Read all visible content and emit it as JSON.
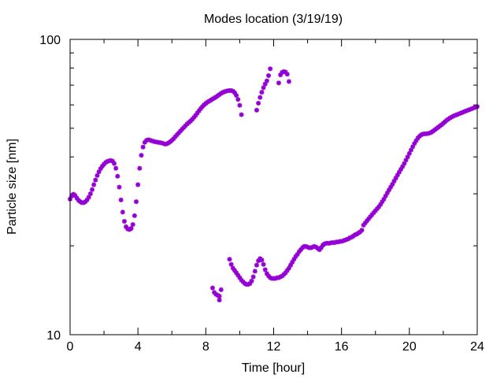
{
  "chart_data": {
    "type": "scatter",
    "title": "Modes location (3/19/19)",
    "xlabel": "Time [hour]",
    "ylabel": "Particle size [nm]",
    "xlim": [
      0,
      24
    ],
    "ylim": [
      10,
      100
    ],
    "yscale": "log",
    "grid": false,
    "legend": "none",
    "marker": "asterisk",
    "marker_color": "#9400d3",
    "x_ticks": [
      0,
      4,
      8,
      12,
      16,
      20,
      24
    ],
    "x_tick_labels": [
      "0",
      "4",
      "8",
      "12",
      "16",
      "20",
      "24"
    ],
    "y_major_ticks": [
      10,
      100
    ],
    "y_tick_labels": [
      "10",
      "100"
    ],
    "series": [
      {
        "points": [
          [
            0.0,
            28.8
          ],
          [
            0.1,
            29.5
          ],
          [
            0.2,
            29.9
          ],
          [
            0.3,
            29.6
          ],
          [
            0.4,
            29.0
          ],
          [
            0.5,
            28.5
          ],
          [
            0.6,
            28.2
          ],
          [
            0.7,
            28.0
          ],
          [
            0.8,
            28.0
          ],
          [
            0.9,
            28.2
          ],
          [
            1.0,
            28.6
          ],
          [
            1.1,
            29.2
          ],
          [
            1.2,
            30.0
          ],
          [
            1.3,
            31.0
          ],
          [
            1.4,
            32.2
          ],
          [
            1.5,
            33.4
          ],
          [
            1.6,
            34.6
          ],
          [
            1.7,
            35.6
          ],
          [
            1.8,
            36.5
          ],
          [
            1.9,
            37.2
          ],
          [
            2.0,
            37.8
          ],
          [
            2.1,
            38.3
          ],
          [
            2.2,
            38.6
          ],
          [
            2.3,
            38.8
          ],
          [
            2.4,
            38.9
          ],
          [
            2.5,
            38.7
          ],
          [
            2.6,
            38.0
          ],
          [
            2.7,
            36.6
          ],
          [
            2.8,
            34.4
          ],
          [
            2.9,
            31.6
          ],
          [
            3.0,
            28.6
          ],
          [
            3.1,
            26.0
          ],
          [
            3.2,
            24.2
          ],
          [
            3.3,
            23.2
          ],
          [
            3.4,
            22.8
          ],
          [
            3.5,
            22.7
          ],
          [
            3.6,
            22.9
          ],
          [
            3.7,
            23.6
          ],
          [
            3.8,
            25.3
          ],
          [
            3.9,
            28.2
          ],
          [
            4.0,
            32.2
          ],
          [
            4.1,
            36.6
          ],
          [
            4.2,
            40.5
          ],
          [
            4.3,
            43.2
          ],
          [
            4.4,
            44.8
          ],
          [
            4.5,
            45.5
          ],
          [
            4.6,
            45.7
          ],
          [
            4.7,
            45.6
          ],
          [
            4.8,
            45.4
          ],
          [
            4.9,
            45.2
          ],
          [
            5.0,
            45.0
          ],
          [
            5.1,
            44.9
          ],
          [
            5.2,
            44.8
          ],
          [
            5.3,
            44.7
          ],
          [
            5.4,
            44.6
          ],
          [
            5.5,
            44.4
          ],
          [
            5.6,
            44.2
          ],
          [
            5.7,
            44.3
          ],
          [
            5.8,
            44.6
          ],
          [
            5.9,
            45.0
          ],
          [
            6.0,
            45.5
          ],
          [
            6.1,
            46.1
          ],
          [
            6.2,
            46.8
          ],
          [
            6.3,
            47.5
          ],
          [
            6.4,
            48.2
          ],
          [
            6.5,
            48.9
          ],
          [
            6.6,
            49.6
          ],
          [
            6.7,
            50.3
          ],
          [
            6.8,
            51.0
          ],
          [
            6.9,
            51.7
          ],
          [
            7.0,
            52.3
          ],
          [
            7.1,
            52.9
          ],
          [
            7.2,
            53.6
          ],
          [
            7.3,
            54.4
          ],
          [
            7.4,
            55.3
          ],
          [
            7.5,
            56.3
          ],
          [
            7.6,
            57.3
          ],
          [
            7.7,
            58.3
          ],
          [
            7.8,
            59.2
          ],
          [
            7.9,
            60.0
          ],
          [
            8.0,
            60.7
          ],
          [
            8.1,
            61.3
          ],
          [
            8.2,
            61.8
          ],
          [
            8.3,
            62.3
          ],
          [
            8.4,
            62.8
          ],
          [
            8.5,
            63.3
          ],
          [
            8.6,
            63.8
          ],
          [
            8.7,
            64.4
          ],
          [
            8.8,
            65.0
          ],
          [
            8.9,
            65.6
          ],
          [
            9.0,
            66.1
          ],
          [
            9.1,
            66.5
          ],
          [
            9.2,
            66.8
          ],
          [
            9.3,
            67.0
          ],
          [
            9.4,
            67.1
          ],
          [
            9.5,
            67.1
          ],
          [
            9.6,
            66.8
          ],
          [
            9.7,
            66.0
          ],
          [
            9.8,
            64.6
          ],
          [
            9.9,
            62.6
          ],
          [
            10.0,
            59.8
          ],
          [
            10.1,
            55.6
          ],
          [
            11.0,
            57.6
          ],
          [
            11.1,
            60.8
          ],
          [
            11.2,
            63.6
          ],
          [
            11.3,
            66.2
          ],
          [
            11.4,
            68.6
          ],
          [
            11.5,
            70.6
          ],
          [
            11.6,
            72.4
          ],
          [
            11.7,
            75.4
          ],
          [
            11.8,
            79.5
          ],
          [
            12.3,
            71.2
          ],
          [
            12.4,
            75.8
          ],
          [
            12.5,
            77.3
          ],
          [
            12.6,
            77.8
          ],
          [
            12.7,
            77.5
          ],
          [
            12.8,
            76.2
          ],
          [
            12.9,
            72.0
          ],
          [
            8.4,
            14.4
          ],
          [
            8.5,
            13.9
          ],
          [
            8.6,
            13.7
          ],
          [
            8.7,
            13.6
          ],
          [
            8.8,
            13.5
          ],
          [
            8.9,
            14.2
          ],
          [
            8.8,
            13.1
          ],
          [
            9.4,
            18.0
          ],
          [
            9.5,
            17.3
          ],
          [
            9.6,
            16.8
          ],
          [
            9.7,
            16.5
          ],
          [
            9.8,
            16.2
          ],
          [
            9.9,
            15.9
          ],
          [
            10.0,
            15.6
          ],
          [
            10.1,
            15.3
          ],
          [
            10.2,
            15.1
          ],
          [
            10.3,
            14.9
          ],
          [
            10.4,
            14.8
          ],
          [
            10.5,
            14.8
          ],
          [
            10.6,
            14.9
          ],
          [
            10.7,
            15.2
          ],
          [
            10.8,
            15.7
          ],
          [
            10.9,
            16.4
          ],
          [
            11.0,
            17.2
          ],
          [
            11.1,
            17.8
          ],
          [
            11.2,
            18.1
          ],
          [
            11.3,
            17.9
          ],
          [
            11.4,
            17.3
          ],
          [
            11.5,
            16.6
          ],
          [
            11.6,
            16.1
          ],
          [
            11.7,
            15.8
          ],
          [
            11.8,
            15.6
          ],
          [
            11.9,
            15.5
          ],
          [
            12.0,
            15.5
          ],
          [
            12.1,
            15.5
          ],
          [
            12.2,
            15.6
          ],
          [
            12.3,
            15.6
          ],
          [
            12.4,
            15.7
          ],
          [
            12.5,
            15.8
          ],
          [
            12.6,
            16.0
          ],
          [
            12.7,
            16.2
          ],
          [
            12.8,
            16.5
          ],
          [
            12.9,
            16.8
          ],
          [
            13.0,
            17.2
          ],
          [
            13.1,
            17.6
          ],
          [
            13.2,
            18.0
          ],
          [
            13.3,
            18.4
          ],
          [
            13.4,
            18.7
          ],
          [
            13.5,
            19.1
          ],
          [
            13.6,
            19.4
          ],
          [
            13.7,
            19.7
          ],
          [
            13.8,
            19.9
          ],
          [
            13.9,
            19.9
          ],
          [
            14.0,
            19.8
          ],
          [
            14.1,
            19.7
          ],
          [
            14.2,
            19.7
          ],
          [
            14.3,
            19.8
          ],
          [
            14.4,
            19.9
          ],
          [
            14.5,
            19.8
          ],
          [
            14.6,
            19.6
          ],
          [
            14.7,
            19.4
          ],
          [
            14.8,
            19.7
          ],
          [
            14.9,
            20.1
          ],
          [
            15.0,
            20.3
          ],
          [
            15.1,
            20.4
          ],
          [
            15.2,
            20.4
          ],
          [
            15.3,
            20.4
          ],
          [
            15.4,
            20.5
          ],
          [
            15.5,
            20.5
          ],
          [
            15.6,
            20.5
          ],
          [
            15.7,
            20.6
          ],
          [
            15.8,
            20.6
          ],
          [
            15.9,
            20.7
          ],
          [
            16.0,
            20.7
          ],
          [
            16.1,
            20.8
          ],
          [
            16.2,
            20.9
          ],
          [
            16.3,
            21.0
          ],
          [
            16.4,
            21.1
          ],
          [
            16.5,
            21.3
          ],
          [
            16.6,
            21.4
          ],
          [
            16.7,
            21.6
          ],
          [
            16.8,
            21.8
          ],
          [
            16.9,
            21.9
          ],
          [
            17.0,
            22.1
          ],
          [
            17.1,
            22.3
          ],
          [
            17.2,
            22.6
          ],
          [
            17.3,
            23.5
          ],
          [
            17.4,
            23.9
          ],
          [
            17.5,
            24.3
          ],
          [
            17.6,
            24.7
          ],
          [
            17.7,
            25.1
          ],
          [
            17.8,
            25.5
          ],
          [
            17.9,
            25.9
          ],
          [
            18.0,
            26.3
          ],
          [
            18.1,
            26.7
          ],
          [
            18.2,
            27.1
          ],
          [
            18.3,
            27.6
          ],
          [
            18.4,
            28.2
          ],
          [
            18.5,
            28.8
          ],
          [
            18.6,
            29.5
          ],
          [
            18.7,
            30.2
          ],
          [
            18.8,
            30.9
          ],
          [
            18.9,
            31.6
          ],
          [
            19.0,
            32.3
          ],
          [
            19.1,
            33.1
          ],
          [
            19.2,
            33.9
          ],
          [
            19.3,
            34.7
          ],
          [
            19.4,
            35.5
          ],
          [
            19.5,
            36.3
          ],
          [
            19.6,
            37.1
          ],
          [
            19.7,
            38.0
          ],
          [
            19.8,
            39.0
          ],
          [
            19.9,
            40.0
          ],
          [
            20.0,
            41.1
          ],
          [
            20.1,
            42.2
          ],
          [
            20.2,
            43.3
          ],
          [
            20.3,
            44.4
          ],
          [
            20.4,
            45.4
          ],
          [
            20.5,
            46.3
          ],
          [
            20.6,
            47.0
          ],
          [
            20.7,
            47.5
          ],
          [
            20.8,
            47.8
          ],
          [
            20.9,
            47.9
          ],
          [
            21.0,
            47.9
          ],
          [
            21.1,
            48.0
          ],
          [
            21.2,
            48.2
          ],
          [
            21.3,
            48.5
          ],
          [
            21.4,
            48.9
          ],
          [
            21.5,
            49.4
          ],
          [
            21.6,
            49.9
          ],
          [
            21.7,
            50.4
          ],
          [
            21.8,
            50.9
          ],
          [
            21.9,
            51.4
          ],
          [
            22.0,
            52.0
          ],
          [
            22.1,
            52.6
          ],
          [
            22.2,
            53.2
          ],
          [
            22.3,
            53.7
          ],
          [
            22.4,
            54.2
          ],
          [
            22.5,
            54.6
          ],
          [
            22.6,
            55.0
          ],
          [
            22.7,
            55.3
          ],
          [
            22.8,
            55.6
          ],
          [
            22.9,
            55.9
          ],
          [
            23.0,
            56.2
          ],
          [
            23.1,
            56.5
          ],
          [
            23.2,
            56.8
          ],
          [
            23.3,
            57.1
          ],
          [
            23.4,
            57.4
          ],
          [
            23.5,
            57.7
          ],
          [
            23.6,
            58.0
          ],
          [
            23.7,
            58.3
          ],
          [
            23.8,
            58.6
          ],
          [
            23.9,
            58.9
          ],
          [
            24.0,
            59.2
          ]
        ]
      }
    ]
  }
}
